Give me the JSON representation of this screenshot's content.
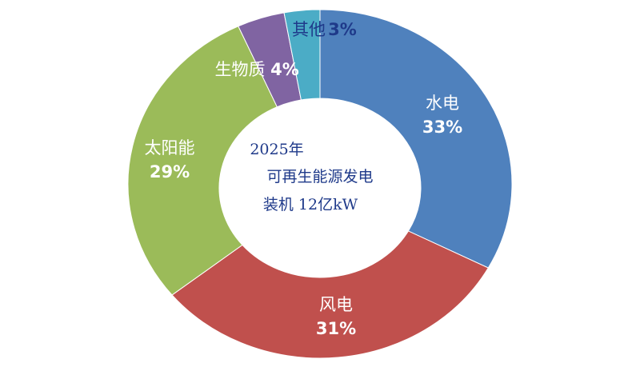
{
  "chart_data": {
    "type": "donut",
    "categories": [
      "水电",
      "风电",
      "太阳能",
      "生物质",
      "其他"
    ],
    "values": [
      33,
      31,
      29,
      4,
      3
    ],
    "value_labels": [
      "33%",
      "31%",
      "29%",
      "4%",
      "3%"
    ],
    "colors": [
      "#4f81bd",
      "#c0504d",
      "#9bbb59",
      "#8064a2",
      "#4bacc6"
    ],
    "center_text": [
      "2025年",
      "可再生能源发电",
      "装机 12亿kW"
    ]
  }
}
